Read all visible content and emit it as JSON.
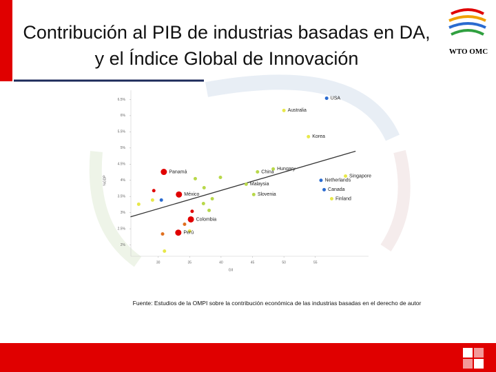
{
  "chart_data": {
    "type": "scatter",
    "title": "Contribución al PIB de industrias basadas en DA, y el Índice Global de Innovación",
    "xlabel": "GII",
    "ylabel": "%GDP",
    "source": "Fuente: Estudios de la OMPI sobre la contribución económica de las industrias basadas en el derecho de autor",
    "xlim": [
      25,
      65
    ],
    "ylim": [
      1.5,
      7
    ],
    "xticks": [
      30,
      35,
      40,
      45,
      50,
      55
    ],
    "yticks": [
      {
        "value": 2,
        "label": "2%"
      },
      {
        "value": 2.5,
        "label": "2.5%"
      },
      {
        "value": 3,
        "label": "3%"
      },
      {
        "value": 3.5,
        "label": "3.5%"
      },
      {
        "value": 4,
        "label": "4%"
      },
      {
        "value": 4.5,
        "label": "4.5%"
      },
      {
        "value": 5,
        "label": "5%"
      },
      {
        "value": 5.5,
        "label": "5.5%"
      },
      {
        "value": 6,
        "label": "6%"
      },
      {
        "value": 6.5,
        "label": "6.5%"
      }
    ],
    "series": [
      {
        "marker_size": 2.5,
        "x": [
          56.8,
          50.0,
          53.9,
          48.3,
          59.8,
          45.8,
          55.9,
          44.0,
          56.4,
          45.2,
          57.6,
          29.3,
          30.5,
          29.1,
          26.9,
          35.9,
          37.3,
          39.9,
          38.6,
          37.2,
          38.1,
          35.4,
          34.2,
          30.7,
          35.0,
          31.0
        ],
        "values": [
          6.54,
          6.16,
          5.35,
          4.35,
          4.13,
          4.26,
          4.0,
          3.88,
          3.71,
          3.56,
          3.43,
          3.68,
          3.39,
          3.39,
          3.26,
          4.05,
          3.77,
          4.09,
          3.43,
          3.28,
          3.07,
          3.04,
          2.64,
          2.34,
          2.43,
          1.81
        ],
        "labels": [
          "USA",
          "Australia",
          "Korea",
          "Hungary",
          "Singapore",
          "China",
          "Netherlands",
          "Malaysia",
          "Canada",
          "Slovenia",
          "Finland",
          null,
          null,
          null,
          null,
          null,
          null,
          null,
          null,
          null,
          null,
          null,
          null,
          null,
          null,
          null
        ],
        "colors": [
          "#2a6bd0",
          "#e8e84a",
          "#e8e84a",
          "#b8d84a",
          "#e8e84a",
          "#b8d84a",
          "#2a6bd0",
          "#b8d84a",
          "#2a6bd0",
          "#b8d84a",
          "#e8e84a",
          "#e00000",
          "#2a6bd0",
          "#e8e84a",
          "#e8e84a",
          "#b8d84a",
          "#b8d84a",
          "#b8d84a",
          "#b8d84a",
          "#b8d84a",
          "#b8d84a",
          "#e00000",
          "#e07020",
          "#e07020",
          "#e8e84a",
          "#e8e84a"
        ]
      },
      {
        "marker_size": 4.5,
        "color": "#e00000",
        "x": [
          30.9,
          33.3,
          35.2,
          33.2
        ],
        "values": [
          4.26,
          3.56,
          2.79,
          2.38
        ],
        "labels": [
          "Panamá",
          "México",
          "Colombia",
          "Perú"
        ]
      }
    ],
    "trend": {
      "color": "#333333",
      "x": [
        25.6,
        61.4
      ],
      "values": [
        2.87,
        4.9
      ]
    }
  },
  "logo": "WTO OMC"
}
